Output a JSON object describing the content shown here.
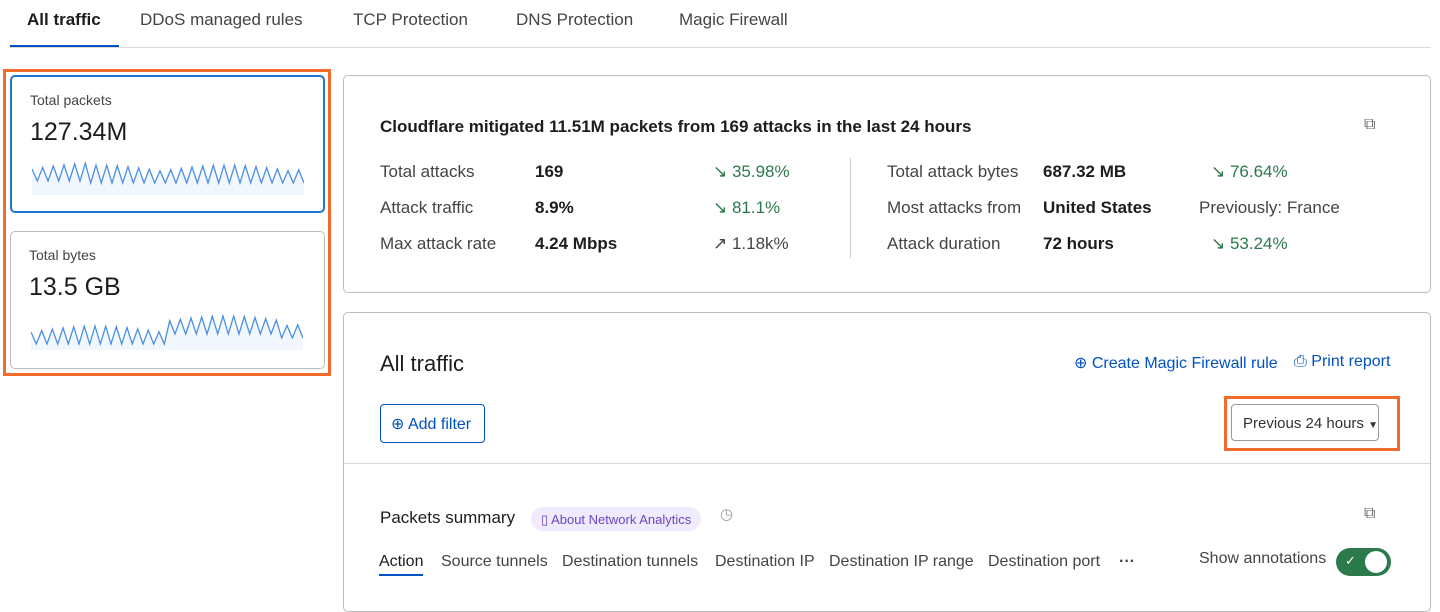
{
  "tabs": [
    "All traffic",
    "DDoS managed rules",
    "TCP Protection",
    "DNS Protection",
    "Magic Firewall"
  ],
  "metrics": [
    {
      "label": "Total packets",
      "value": "127.34M"
    },
    {
      "label": "Total bytes",
      "value": "13.5 GB"
    }
  ],
  "summary": {
    "headline": "Cloudflare mitigated 11.51M packets from 169 attacks in the last 24 hours",
    "left": [
      {
        "label": "Total attacks",
        "value": "169",
        "change": "35.98%",
        "dir": "down"
      },
      {
        "label": "Attack traffic",
        "value": "8.9%",
        "change": "81.1%",
        "dir": "down"
      },
      {
        "label": "Max attack rate",
        "value": "4.24 Mbps",
        "change": "1.18k%",
        "dir": "up"
      }
    ],
    "right": [
      {
        "label": "Total attack bytes",
        "value": "687.32 MB",
        "change": "76.64%",
        "dir": "down"
      },
      {
        "label": "Most attacks from",
        "value": "United States",
        "change": "Previously: France",
        "dir": "none"
      },
      {
        "label": "Attack duration",
        "value": "72 hours",
        "change": "53.24%",
        "dir": "down"
      }
    ]
  },
  "traffic": {
    "title": "All traffic",
    "create_rule": "Create Magic Firewall rule",
    "print": "Print report",
    "add_filter": "Add filter",
    "time_range": "Previous 24 hours"
  },
  "packets": {
    "title": "Packets summary",
    "about": "About Network Analytics",
    "tabs": [
      "Action",
      "Source tunnels",
      "Destination tunnels",
      "Destination IP",
      "Destination IP range",
      "Destination port"
    ],
    "show_annotations": "Show annotations",
    "annotations_on": true
  },
  "colors": {
    "accent": "#0051c3",
    "highlight": "#f26b2b",
    "positive": "#2c7a4b",
    "toggle": "#2c7a4b"
  }
}
